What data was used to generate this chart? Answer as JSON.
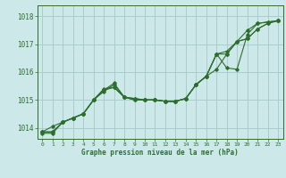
{
  "title": "Graphe pression niveau de la mer (hPa)",
  "background_color": "#cce8e8",
  "grid_color": "#aacccc",
  "line_color": "#2d6e2d",
  "xlim": [
    -0.5,
    23.5
  ],
  "ylim": [
    1013.6,
    1018.4
  ],
  "yticks": [
    1014,
    1015,
    1016,
    1017,
    1018
  ],
  "xticks": [
    0,
    1,
    2,
    3,
    4,
    5,
    6,
    7,
    8,
    9,
    10,
    11,
    12,
    13,
    14,
    15,
    16,
    17,
    18,
    19,
    20,
    21,
    22,
    23
  ],
  "series": [
    [
      1013.85,
      1014.05,
      1014.2,
      1014.35,
      1014.5,
      1015.0,
      1015.3,
      1015.55,
      1015.1,
      1015.05,
      1015.0,
      1015.0,
      1014.95,
      1014.95,
      1015.05,
      1015.55,
      1015.85,
      1016.65,
      1016.75,
      1017.1,
      1017.5,
      1017.75,
      1017.8,
      1017.85
    ],
    [
      1013.85,
      1013.85,
      1014.2,
      1014.35,
      1014.5,
      1015.0,
      1015.35,
      1015.6,
      1015.1,
      1015.05,
      1015.0,
      1015.0,
      1014.95,
      1014.95,
      1015.05,
      1015.55,
      1015.85,
      1016.65,
      1016.15,
      1016.1,
      1017.35,
      1017.75,
      1017.8,
      1017.85
    ],
    [
      1013.85,
      1013.85,
      1014.2,
      1014.35,
      1014.5,
      1015.0,
      1015.35,
      1015.45,
      1015.1,
      1015.0,
      1015.0,
      1015.0,
      1014.95,
      1014.95,
      1015.05,
      1015.55,
      1015.85,
      1016.65,
      1016.65,
      1017.1,
      1017.2,
      1017.55,
      1017.75,
      1017.85
    ],
    [
      1013.8,
      1013.8,
      1014.2,
      1014.35,
      1014.5,
      1015.0,
      1015.4,
      1015.45,
      1015.1,
      1015.0,
      1015.0,
      1015.0,
      1014.95,
      1014.95,
      1015.05,
      1015.55,
      1015.85,
      1016.1,
      1016.65,
      1017.1,
      1017.2,
      1017.55,
      1017.75,
      1017.85
    ]
  ]
}
